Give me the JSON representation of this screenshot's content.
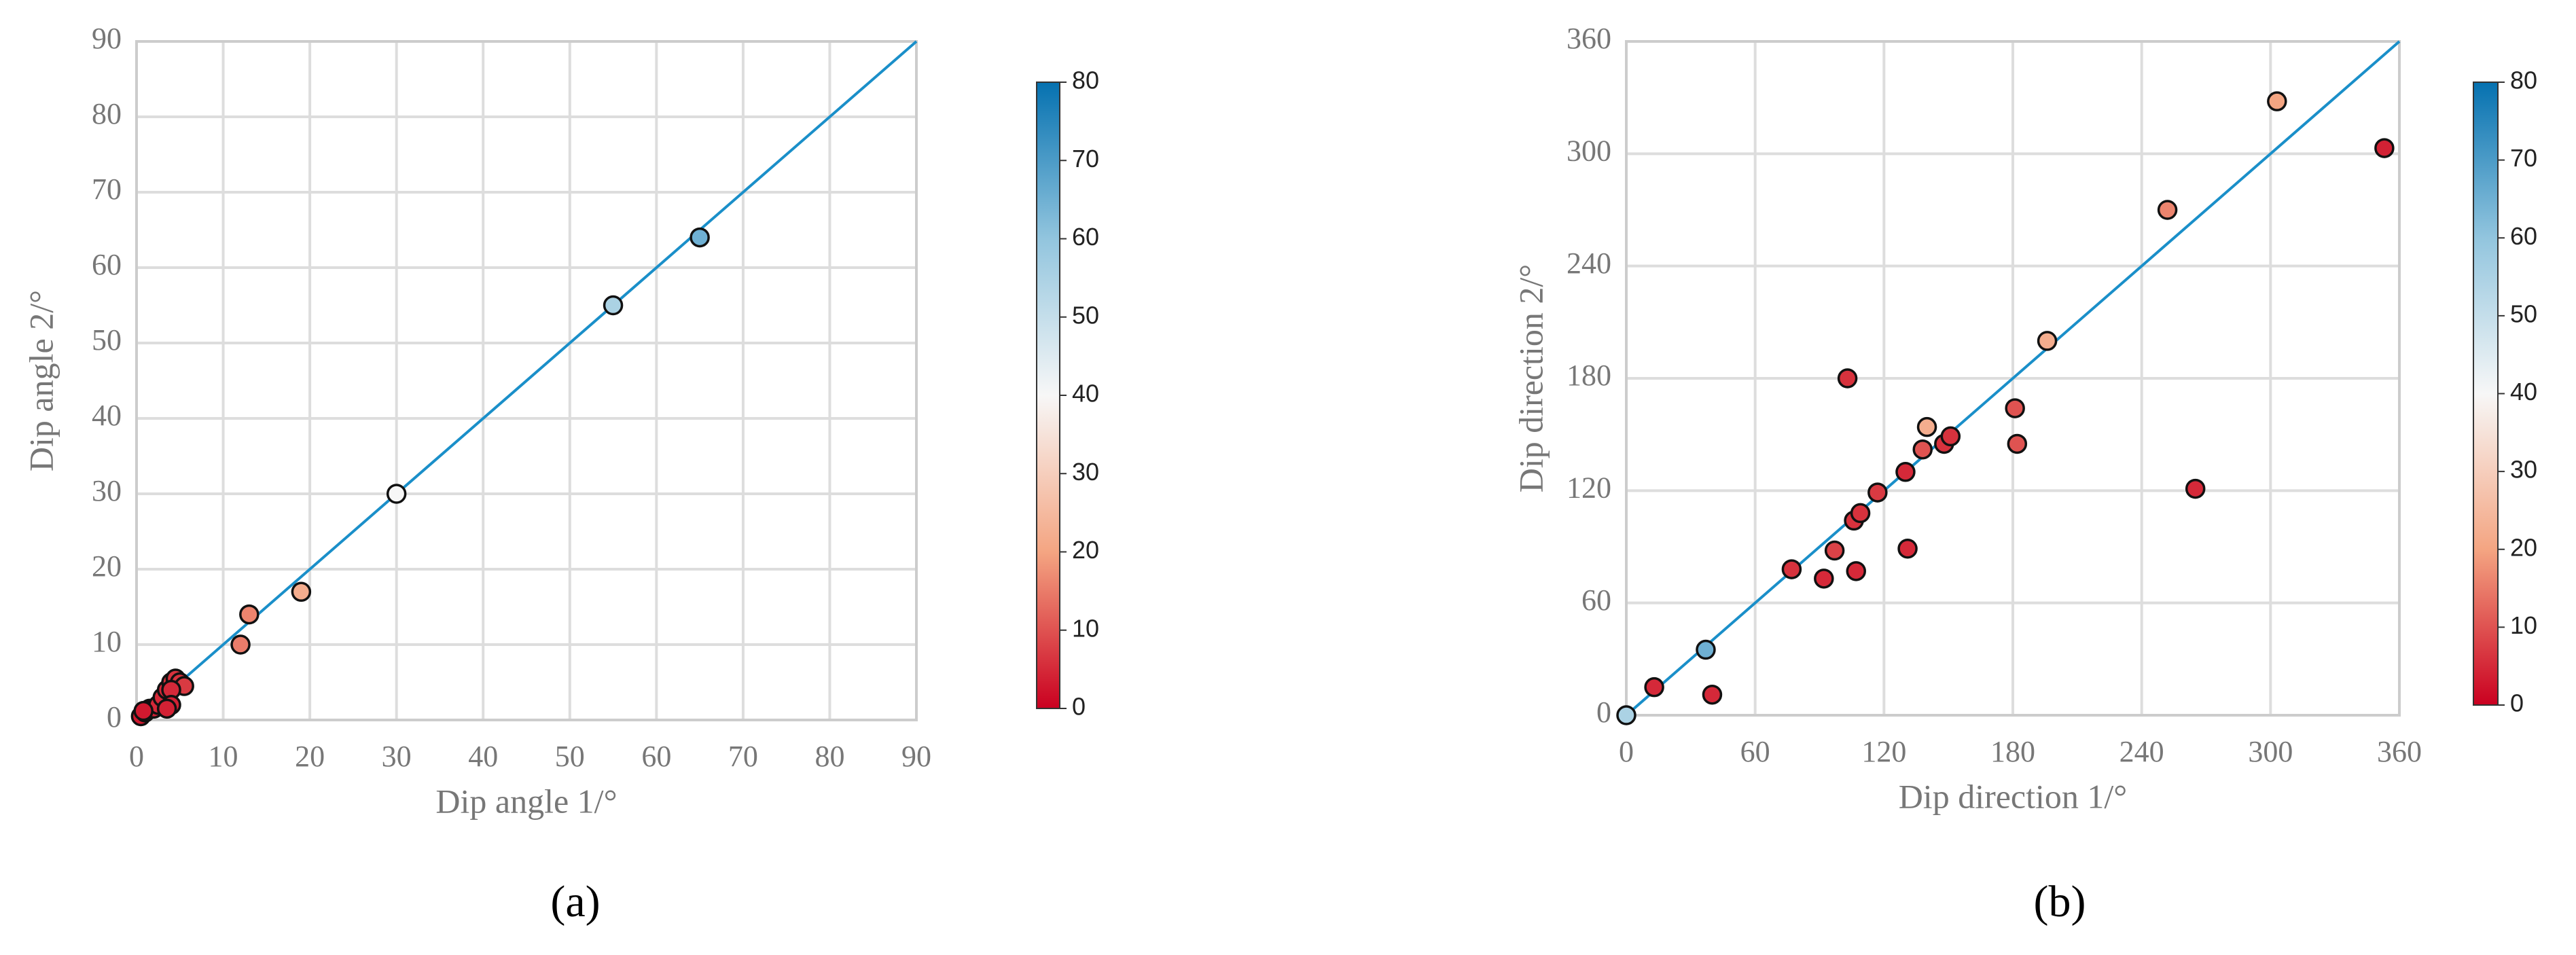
{
  "chart_data": [
    {
      "type": "scatter",
      "panel_label": "(a)",
      "x_label": "Dip angle 1/°",
      "y_label": "Dip angle 2/°",
      "x": [
        0.5,
        1,
        1.5,
        2,
        2.5,
        3,
        3.5,
        4,
        4.5,
        5,
        5.5,
        4,
        4,
        3.5,
        0.8,
        12,
        13,
        19,
        30,
        55,
        65
      ],
      "y": [
        0.5,
        1,
        1.5,
        1.5,
        2,
        3,
        4,
        5,
        5.5,
        5,
        4.5,
        4,
        2,
        1.5,
        1.2,
        10,
        14,
        17,
        30,
        55,
        64
      ],
      "c": [
        3,
        3,
        4,
        4,
        5,
        5,
        5,
        6,
        6,
        6,
        7,
        5,
        4,
        4,
        3,
        15,
        16,
        22,
        40,
        55,
        65
      ],
      "xlim": [
        0,
        90
      ],
      "ylim": [
        0,
        90
      ],
      "xticks": [
        0,
        10,
        20,
        30,
        40,
        50,
        60,
        70,
        80,
        90
      ],
      "yticks": [
        0,
        10,
        20,
        30,
        40,
        50,
        60,
        70,
        80,
        90
      ],
      "clim": [
        0,
        80
      ],
      "cticks": [
        0,
        10,
        20,
        30,
        40,
        50,
        60,
        70,
        80
      ],
      "colormap": [
        "#ca0020",
        "#f4a582",
        "#f7f7f7",
        "#92c5de",
        "#0571b0"
      ],
      "line_color": "#1a8fc9",
      "grid": true
    },
    {
      "type": "scatter",
      "panel_label": "(b)",
      "x_label": "Dip direction 1/°",
      "y_label": "Dip direction 2/°",
      "x": [
        0,
        13,
        40,
        37,
        77,
        92,
        97,
        103,
        106,
        107,
        109,
        117,
        130,
        131,
        138,
        140,
        148,
        151,
        181,
        182,
        196,
        252,
        265,
        303,
        353
      ],
      "y": [
        0,
        15,
        11,
        35,
        78,
        73,
        88,
        180,
        104,
        77,
        108,
        119,
        130,
        89,
        142,
        154,
        145,
        149,
        164,
        145,
        200,
        270,
        121,
        328,
        303
      ],
      "c": [
        55,
        5,
        5,
        65,
        6,
        5,
        8,
        6,
        6,
        5,
        6,
        7,
        5,
        5,
        10,
        22,
        6,
        6,
        10,
        10,
        22,
        16,
        5,
        20,
        4
      ],
      "xlim": [
        0,
        360
      ],
      "ylim": [
        0,
        360
      ],
      "xticks": [
        0,
        60,
        120,
        180,
        240,
        300,
        360
      ],
      "yticks": [
        0,
        60,
        120,
        180,
        240,
        300,
        360
      ],
      "clim": [
        0,
        80
      ],
      "cticks": [
        0,
        10,
        20,
        30,
        40,
        50,
        60,
        70,
        80
      ],
      "colormap": [
        "#ca0020",
        "#f4a582",
        "#f7f7f7",
        "#92c5de",
        "#0571b0"
      ],
      "line_color": "#1a8fc9",
      "grid": true
    }
  ]
}
